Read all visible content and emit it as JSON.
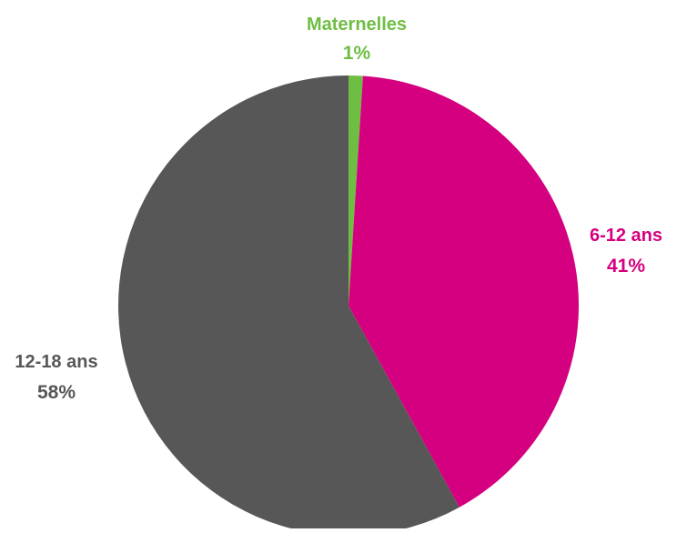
{
  "chart_data": {
    "type": "pie",
    "title": "",
    "slices": [
      {
        "label": "Maternelles",
        "value": 1,
        "value_label": "1%",
        "color": "#6fbe44"
      },
      {
        "label": "6-12 ans",
        "value": 41,
        "value_label": "41%",
        "color": "#d5007f"
      },
      {
        "label": "12-18 ans",
        "value": 58,
        "value_label": "58%",
        "color": "#575757"
      }
    ],
    "start_angle": "top (12 o'clock)",
    "direction": "clockwise",
    "legend": "none",
    "labels": "outside slices, category name above percentage"
  }
}
